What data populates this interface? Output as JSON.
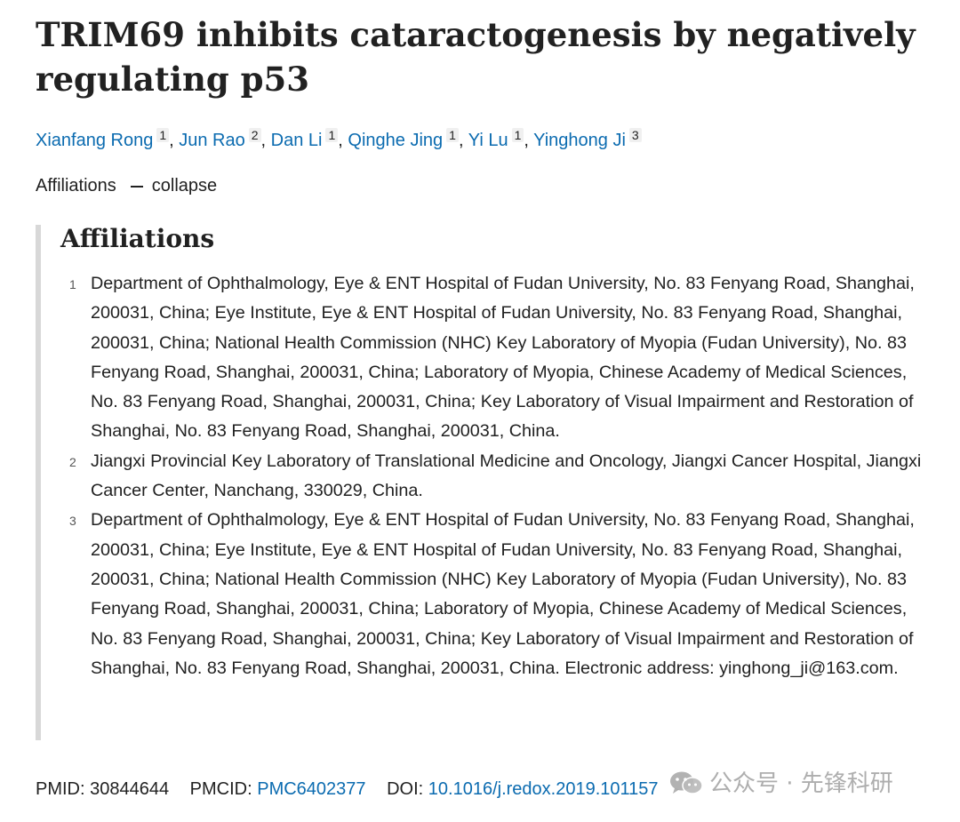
{
  "article": {
    "title": "TRIM69 inhibits cataractogenesis by negatively regulating p53",
    "authors": [
      {
        "name": "Xianfang Rong",
        "aff": "1"
      },
      {
        "name": "Jun Rao",
        "aff": "2"
      },
      {
        "name": "Dan Li",
        "aff": "1"
      },
      {
        "name": "Qinghe Jing",
        "aff": "1"
      },
      {
        "name": "Yi Lu",
        "aff": "1"
      },
      {
        "name": "Yinghong Ji",
        "aff": "3"
      }
    ],
    "affiliations_toggle": {
      "label": "Affiliations",
      "action": "collapse"
    },
    "affiliations_heading": "Affiliations",
    "affiliations": [
      {
        "num": "1",
        "text": "Department of Ophthalmology, Eye & ENT Hospital of Fudan University, No. 83 Fenyang Road, Shanghai, 200031, China; Eye Institute, Eye & ENT Hospital of Fudan University, No. 83 Fenyang Road, Shanghai, 200031, China; National Health Commission (NHC) Key Laboratory of Myopia (Fudan University), No. 83 Fenyang Road, Shanghai, 200031, China; Laboratory of Myopia, Chinese Academy of Medical Sciences, No. 83 Fenyang Road, Shanghai, 200031, China; Key Laboratory of Visual Impairment and Restoration of Shanghai, No. 83 Fenyang Road, Shanghai, 200031, China."
      },
      {
        "num": "2",
        "text": "Jiangxi Provincial Key Laboratory of Translational Medicine and Oncology, Jiangxi Cancer Hospital, Jiangxi Cancer Center, Nanchang, 330029, China."
      },
      {
        "num": "3",
        "text": "Department of Ophthalmology, Eye & ENT Hospital of Fudan University, No. 83 Fenyang Road, Shanghai, 200031, China; Eye Institute, Eye & ENT Hospital of Fudan University, No. 83 Fenyang Road, Shanghai, 200031, China; National Health Commission (NHC) Key Laboratory of Myopia (Fudan University), No. 83 Fenyang Road, Shanghai, 200031, China; Laboratory of Myopia, Chinese Academy of Medical Sciences, No. 83 Fenyang Road, Shanghai, 200031, China; Key Laboratory of Visual Impairment and Restoration of Shanghai, No. 83 Fenyang Road, Shanghai, 200031, China. Electronic address: yinghong_ji@163.com."
      }
    ],
    "identifiers": {
      "pmid_label": "PMID:",
      "pmid": "30844644",
      "pmcid_label": "PMCID:",
      "pmcid": "PMC6402377",
      "doi_label": "DOI:",
      "doi": "10.1016/j.redox.2019.101157"
    }
  },
  "watermark": {
    "icon": "wechat-icon",
    "text": "公众号 · 先锋科研"
  },
  "colors": {
    "link": "#0b6bb0",
    "text": "#212121",
    "sidebar_rule": "#d8d8d8",
    "badge_bg": "#f0f0f0"
  }
}
